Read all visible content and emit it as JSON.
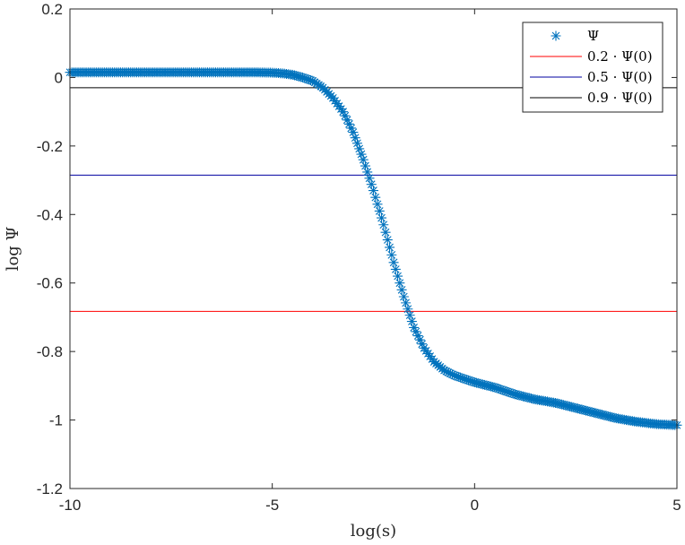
{
  "chart_data": {
    "type": "scatter",
    "xlabel": "log(s)",
    "ylabel": "log Ψ",
    "xlim": [
      -10,
      5
    ],
    "ylim": [
      -1.2,
      0.2
    ],
    "xticks": [
      "-10",
      "-5",
      "0",
      "5"
    ],
    "yticks": [
      "-1.2",
      "-1",
      "-0.8",
      "-0.6",
      "-0.4",
      "-0.2",
      "0",
      "0.2"
    ],
    "grid": false,
    "legend_position": "top-right",
    "series": [
      {
        "name": "Ψ",
        "kind": "markers",
        "marker": "*",
        "color": "#0072BD",
        "x": [
          -10,
          -9.5,
          -9,
          -8.5,
          -8,
          -7.5,
          -7,
          -6.5,
          -6,
          -5.5,
          -5,
          -4.75,
          -4.5,
          -4.25,
          -4,
          -3.75,
          -3.5,
          -3.25,
          -3,
          -2.75,
          -2.5,
          -2.25,
          -2,
          -1.75,
          -1.5,
          -1.25,
          -1,
          -0.75,
          -0.5,
          -0.25,
          0,
          0.5,
          1,
          1.5,
          2,
          2.5,
          3,
          3.5,
          4,
          4.5,
          5
        ],
        "y": [
          0.015,
          0.015,
          0.015,
          0.015,
          0.015,
          0.015,
          0.015,
          0.015,
          0.015,
          0.015,
          0.014,
          0.012,
          0.008,
          0.0,
          -0.01,
          -0.03,
          -0.06,
          -0.1,
          -0.16,
          -0.24,
          -0.33,
          -0.43,
          -0.54,
          -0.64,
          -0.73,
          -0.79,
          -0.83,
          -0.855,
          -0.87,
          -0.88,
          -0.89,
          -0.905,
          -0.925,
          -0.94,
          -0.95,
          -0.965,
          -0.98,
          -0.995,
          -1.005,
          -1.012,
          -1.015
        ]
      },
      {
        "name": "0.2 · Ψ(0)",
        "kind": "hline",
        "y": -0.683,
        "color": "#ff0000"
      },
      {
        "name": "0.5 · Ψ(0)",
        "kind": "hline",
        "y": -0.285,
        "color": "#0000a0"
      },
      {
        "name": "0.9 · Ψ(0)",
        "kind": "hline",
        "y": -0.03,
        "color": "#000000"
      }
    ]
  }
}
